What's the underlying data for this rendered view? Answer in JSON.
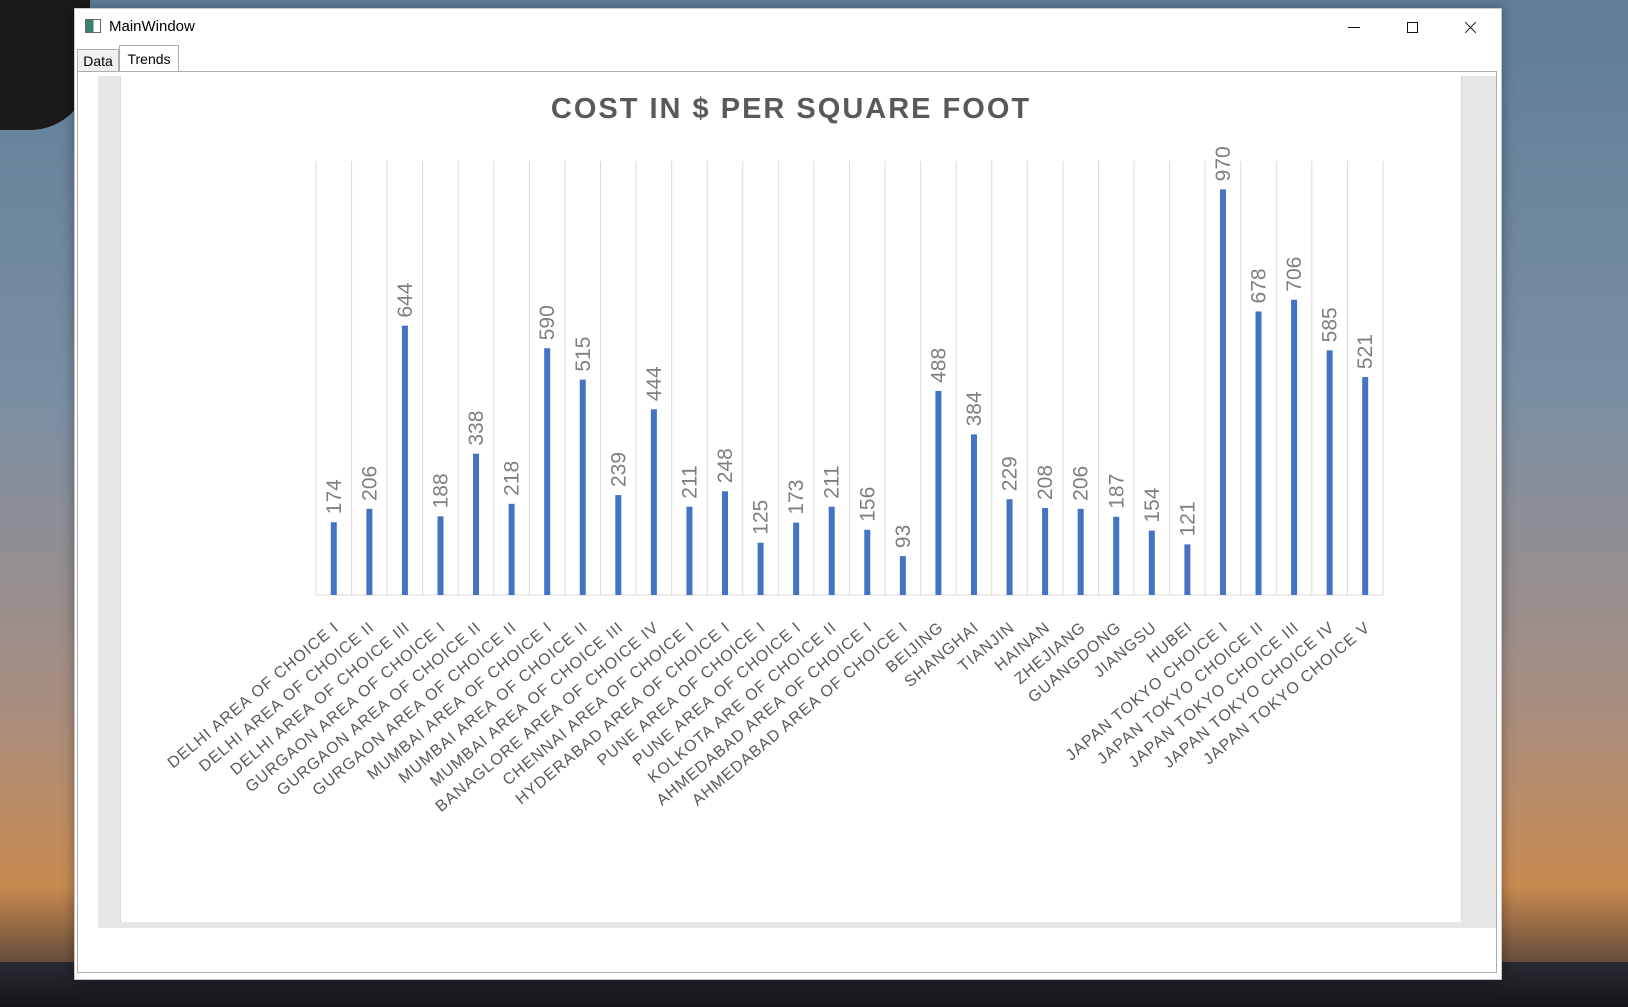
{
  "window": {
    "title": "MainWindow",
    "icon": "app-window-icon"
  },
  "tabs": [
    {
      "label": "Data",
      "selected": false
    },
    {
      "label": "Trends",
      "selected": true
    }
  ],
  "chart_data": {
    "type": "bar",
    "title": "COST IN $ PER SQUARE FOOT",
    "xlabel": "",
    "ylabel": "",
    "ylim": [
      0,
      1100
    ],
    "grid": "vertical",
    "legend": "none",
    "bar_color": "#4472c4",
    "categories": [
      "DELHI AREA OF CHOICE I",
      "DELHI AREA OF CHOICE II",
      "DELHI AREA OF CHOICE III",
      "GURGAON AREA OF CHOICE I",
      "GURGAON AREA OF CHOICE II",
      "GURGAON AREA OF CHOICE II",
      "MUMBAI AREA OF CHOICE I",
      "MUMBAI AREA OF CHOICE II",
      "MUMBAI AREA OF CHOICE III",
      "BANAGLORE AREA OF CHOICE IV",
      "CHENNAI AREA OF CHOICE I",
      "HYDERABAD AREA OF CHOICE I",
      "PUNE AREA OF CHOICE I",
      "PUNE AREA OF CHOICE I",
      "KOLKOTA ARE OF CHOICE II",
      "AHMEDABAD AREA OF CHOICE I",
      "AHMEDABAD AREA OF CHOICE I",
      "BEIJING",
      "SHANGHAI",
      "TIANJIN",
      "HAINAN",
      "ZHEJIANG",
      "GUANGDONG",
      "JIANGSU",
      "HUBEI",
      "JAPAN TOKYO CHOICE I",
      "JAPAN TOKYO CHOICE II",
      "JAPAN TOKYO CHOICE III",
      "JAPAN TOKYO CHOICE IV",
      "JAPAN TOKYO CHOICE V"
    ],
    "values": [
      174,
      206,
      644,
      188,
      338,
      218,
      590,
      515,
      239,
      444,
      211,
      248,
      125,
      173,
      211,
      156,
      93,
      488,
      384,
      229,
      208,
      206,
      187,
      154,
      121,
      970,
      678,
      706,
      585,
      521
    ]
  }
}
